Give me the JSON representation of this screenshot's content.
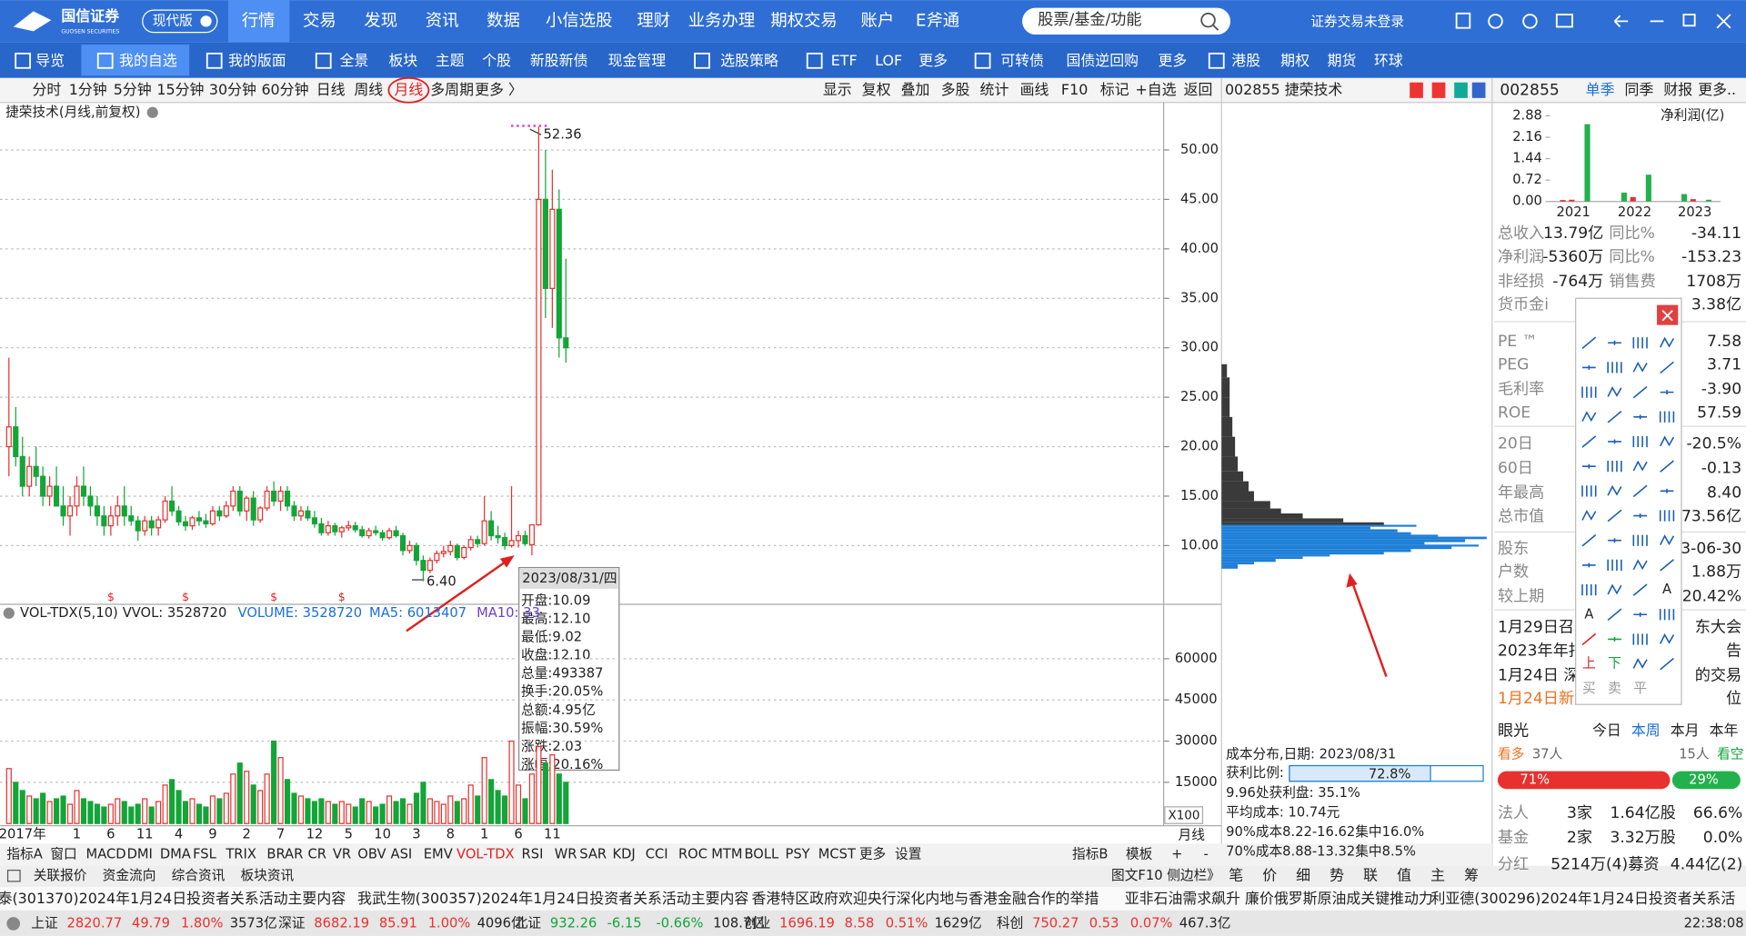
{
  "top_nav": {
    "logo": "国信证券",
    "logo_sub": "GUOSEN SECURITIES",
    "edition": "现代版",
    "menu": [
      "行情",
      "交易",
      "发现",
      "资讯",
      "数据",
      "小信选股",
      "理财",
      "业务办理",
      "期权交易",
      "账户",
      "E斧通"
    ],
    "search": "股票/基金/功能",
    "login": "证券交易未登录"
  },
  "toolbar": [
    "导览",
    "我的自选",
    "我的版面",
    "全景",
    "板块",
    "主题",
    "个股",
    "新股新债",
    "现金管理",
    "选股策略",
    "ETF",
    "LOF",
    "更多",
    "可转债",
    "国债逆回购",
    "更多",
    "港股",
    "期权",
    "期货",
    "环球"
  ],
  "period_tabs": [
    "分时",
    "1分钟",
    "5分钟",
    "15分钟",
    "30分钟",
    "60分钟",
    "日线",
    "周线",
    "月线",
    "多周期",
    "更多 〉"
  ],
  "chart_tools": [
    "显示",
    "复权",
    "叠加",
    "多股",
    "统计",
    "画线",
    "F10",
    "标记",
    "+自选",
    "返回"
  ],
  "chart_data": [
    {
      "type": "candlestick",
      "title": "捷荣技术(月线,前复权)",
      "categories": [
        null,
        null,
        "2017年",
        null,
        null,
        null,
        null,
        null,
        null,
        null,
        "1",
        null,
        null,
        null,
        null,
        "6",
        null,
        null,
        null,
        null,
        "11",
        null,
        null,
        null,
        null,
        "4",
        null,
        null,
        null,
        null,
        "9",
        null,
        null,
        null,
        null,
        "2",
        null,
        null,
        null,
        null,
        "7",
        null,
        null,
        null,
        null,
        "12",
        null,
        null,
        null,
        null,
        "5",
        null,
        null,
        null,
        null,
        "10",
        null,
        null,
        null,
        null,
        "3",
        null,
        null,
        null,
        null,
        "8",
        null,
        null,
        null,
        null,
        "1",
        null,
        null,
        null,
        null,
        "6",
        null,
        null,
        null,
        null,
        "11",
        null,
        null
      ],
      "ohlc": [
        [
          20,
          29,
          17,
          22
        ],
        [
          22,
          24,
          18,
          19
        ],
        [
          19,
          21,
          15,
          16
        ],
        [
          16,
          19,
          15,
          18
        ],
        [
          18,
          20,
          16,
          17
        ],
        [
          17,
          18,
          14,
          15
        ],
        [
          15,
          17,
          14,
          16
        ],
        [
          16,
          18,
          14,
          14
        ],
        [
          14,
          16,
          12,
          13
        ],
        [
          13,
          15,
          11,
          14
        ],
        [
          14,
          17,
          13,
          16
        ],
        [
          16,
          18,
          14,
          15
        ],
        [
          15,
          16,
          13,
          14
        ],
        [
          14,
          15,
          12,
          13
        ],
        [
          13,
          14,
          11,
          12
        ],
        [
          12,
          14,
          11,
          13
        ],
        [
          13,
          15,
          12,
          14
        ],
        [
          14,
          16,
          12,
          13
        ],
        [
          13,
          14,
          12,
          12.5
        ],
        [
          12.5,
          13,
          10.5,
          11.5
        ],
        [
          11.5,
          13,
          11,
          12.5
        ],
        [
          12.5,
          13,
          11,
          11.8
        ],
        [
          11.8,
          13,
          11,
          12.6
        ],
        [
          12.6,
          15,
          12.3,
          14.5
        ],
        [
          14.5,
          16,
          13,
          13.5
        ],
        [
          13.5,
          14,
          12,
          12.4
        ],
        [
          12.4,
          13,
          11.5,
          12
        ],
        [
          12,
          13,
          11.6,
          12.8
        ],
        [
          12.8,
          13.5,
          12,
          12.5
        ],
        [
          12.5,
          13.2,
          11.8,
          12.2
        ],
        [
          12.2,
          14,
          12,
          13.5
        ],
        [
          13.5,
          14,
          12.5,
          13
        ],
        [
          13,
          14.5,
          12.8,
          14
        ],
        [
          14,
          16,
          13.5,
          15.5
        ],
        [
          15.5,
          16,
          13,
          13.5
        ],
        [
          13.5,
          15,
          12.5,
          14.8
        ],
        [
          14.8,
          15.5,
          12,
          12.6
        ],
        [
          12.6,
          14,
          12.3,
          13.8
        ],
        [
          13.8,
          16,
          13.5,
          15.5
        ],
        [
          15.5,
          16.5,
          14,
          14.5
        ],
        [
          14.5,
          16,
          13.5,
          15.5
        ],
        [
          15.5,
          16,
          13.5,
          14
        ],
        [
          14,
          14.5,
          12.5,
          13
        ],
        [
          13,
          14,
          12.5,
          13.5
        ],
        [
          13.5,
          14,
          12.5,
          12.8
        ],
        [
          12.8,
          13.5,
          11.8,
          12.2
        ],
        [
          12.2,
          12.8,
          11,
          11.3
        ],
        [
          11.3,
          12.5,
          11,
          12
        ],
        [
          12,
          12.3,
          11,
          11.4
        ],
        [
          11.4,
          12,
          10.8,
          11.8
        ],
        [
          11.8,
          12.5,
          11.5,
          12
        ],
        [
          12,
          12.4,
          11.3,
          11.6
        ],
        [
          11.6,
          12,
          10.8,
          11
        ],
        [
          11,
          11.8,
          10.7,
          11.5
        ],
        [
          11.5,
          12,
          11,
          11.3
        ],
        [
          11.3,
          11.6,
          10.5,
          10.8
        ],
        [
          10.8,
          11.8,
          10.6,
          11.5
        ],
        [
          11.5,
          12,
          10.8,
          11
        ],
        [
          11,
          11.3,
          9,
          9.5
        ],
        [
          9.5,
          10.5,
          9.2,
          10
        ],
        [
          10,
          10.3,
          8,
          8.5
        ],
        [
          8.5,
          9,
          6.4,
          7.5
        ],
        [
          7.5,
          8.8,
          7.2,
          8.5
        ],
        [
          8.5,
          9.5,
          8.2,
          9.2
        ],
        [
          9.2,
          10,
          8.8,
          9.4
        ],
        [
          9.4,
          10.5,
          9,
          10
        ],
        [
          10,
          10.2,
          8.5,
          8.8
        ],
        [
          8.8,
          10,
          8.6,
          9.8
        ],
        [
          9.8,
          11,
          9.5,
          10.6
        ],
        [
          10.6,
          11,
          9.8,
          10.2
        ],
        [
          10.2,
          15,
          10,
          12.5
        ],
        [
          12.5,
          13.5,
          10.5,
          11
        ],
        [
          11,
          12,
          10.2,
          10.8
        ],
        [
          10.8,
          11.3,
          9.6,
          10
        ],
        [
          10,
          16,
          9.8,
          10.5
        ],
        [
          10.5,
          11.5,
          9.8,
          11
        ],
        [
          11,
          11.5,
          10,
          10.2
        ],
        [
          10.09,
          12.1,
          9.02,
          12.1
        ],
        [
          12.1,
          52.36,
          12,
          45
        ],
        [
          45,
          50,
          33,
          36
        ],
        [
          36,
          48,
          32,
          44
        ],
        [
          44,
          46,
          29,
          31
        ],
        [
          31,
          39,
          28.5,
          30
        ]
      ],
      "ylim": [
        4.4,
        53.9
      ],
      "yticks": [
        {
          "value": 10,
          "label": "10.00"
        },
        {
          "value": 15,
          "label": "15.00"
        },
        {
          "value": 20,
          "label": "20.00"
        },
        {
          "value": 25,
          "label": "25.00"
        },
        {
          "value": 30,
          "label": "30.00"
        },
        {
          "value": 35,
          "label": "35.00"
        },
        {
          "value": 40,
          "label": "40.00"
        },
        {
          "value": 45,
          "label": "45.00"
        },
        {
          "value": 50,
          "label": "50.00"
        }
      ],
      "grid": true,
      "up_color": "#e8312f",
      "down_color": "#13a538",
      "annotations": {
        "high": "52.36",
        "low": "6.40"
      },
      "markers": [
        "$",
        "$",
        "$",
        "$"
      ],
      "tooltip": {
        "date": "2023/08/31/四",
        "rows": [
          "开盘:10.09",
          "最高:12.10",
          "最低:9.02",
          "收盘:12.10",
          "总量:493387",
          "换手:20.05%",
          "总额:4.95亿",
          "振幅:30.59%",
          "涨跌:2.03",
          "涨幅:20.16%"
        ]
      },
      "period_label": "月线"
    },
    {
      "type": "bar",
      "title": "VOL-TDX(5,10)",
      "header": [
        "VVOL: 3528720",
        "VOLUME: 3528720",
        "MA5: 6013407",
        "MA10: 33"
      ],
      "values": [
        20000,
        15000,
        12000,
        10000,
        9000,
        11000,
        8000,
        9000,
        10000,
        7000,
        12000,
        9000,
        8000,
        7000,
        6000,
        7000,
        9000,
        8000,
        6000,
        7000,
        9000,
        6000,
        8000,
        14000,
        16000,
        12000,
        8000,
        9000,
        7000,
        6000,
        10000,
        9000,
        11000,
        18000,
        22000,
        19000,
        14000,
        12000,
        18000,
        30000,
        24000,
        16000,
        11000,
        10000,
        9000,
        8000,
        9000,
        8000,
        7000,
        8000,
        7000,
        6000,
        9000,
        8000,
        6000,
        7000,
        10000,
        8000,
        9000,
        7000,
        11000,
        15000,
        9000,
        8000,
        7000,
        10000,
        8000,
        9000,
        14000,
        10000,
        24000,
        16000,
        12000,
        10000,
        30000,
        14000,
        9000,
        18000,
        28000,
        22000,
        25000,
        18000,
        15000
      ],
      "ylim": [
        0,
        79000
      ],
      "yticks": [
        15000,
        30000,
        45000,
        60000
      ],
      "grid": true,
      "unit_label": "X100"
    },
    {
      "type": "chip_distribution",
      "title": "002855 捷荣技术",
      "prices": [
        28,
        26,
        24,
        22,
        20,
        18,
        17,
        16,
        15,
        14,
        13.5,
        13,
        12.5,
        12.2,
        12,
        11.8,
        11.5,
        11.2,
        11,
        10.8,
        10.5,
        10.2,
        10,
        9.8,
        9.5,
        9.2,
        9,
        8.8,
        8.5,
        8.2,
        8
      ],
      "amounts": [
        2,
        3,
        3,
        4,
        5,
        6,
        8,
        10,
        12,
        18,
        22,
        30,
        45,
        60,
        72,
        55,
        65,
        70,
        80,
        98,
        90,
        75,
        95,
        85,
        70,
        60,
        40,
        30,
        20,
        12,
        6
      ],
      "colors": [
        "#3a3a3a",
        "#3a3a3a",
        "#3a3a3a",
        "#3a3a3a",
        "#3a3a3a",
        "#3a3a3a",
        "#3a3a3a",
        "#3a3a3a",
        "#3a3a3a",
        "#3a3a3a",
        "#3a3a3a",
        "#3a3a3a",
        "#3a3a3a",
        "#3a3a3a",
        "#1e7fd8",
        "#1e7fd8",
        "#1e7fd8",
        "#1e7fd8",
        "#1e7fd8",
        "#1e7fd8",
        "#1e7fd8",
        "#1e7fd8",
        "#1e7fd8",
        "#1e7fd8",
        "#1e7fd8",
        "#1e7fd8",
        "#1e7fd8",
        "#1e7fd8",
        "#1e7fd8",
        "#1e7fd8",
        "#1e7fd8"
      ],
      "date_label": "成本分布,日期: 2023/08/31",
      "profit_label": "获利比例:",
      "profit_ratio": {
        "value": 72.8,
        "label": "72.8%"
      },
      "lines": [
        "9.96处获利盘: 35.1%",
        "平均成本: 10.74元",
        "90%成本8.22-16.62集中16.0%",
        "70%成本8.88-13.32集中8.5%"
      ]
    },
    {
      "type": "grouped_bar",
      "title": "净利润(亿)",
      "categories": [
        "2021",
        "2022",
        "2023"
      ],
      "values": [
        [
          0.05,
          0.06,
          2.6
        ],
        [
          0.3,
          0.15,
          0.9
        ],
        [
          0.25,
          0.08,
          0.06
        ]
      ],
      "colors": [
        [
          "#e8312f",
          "#e8312f",
          "#22b14c"
        ],
        [
          "#22b14c",
          "#e8312f",
          "#22b14c"
        ],
        [
          "#22b14c",
          "#e8312f",
          "#22b14c"
        ]
      ],
      "ylim": [
        0,
        2.88
      ],
      "yticks": [
        {
          "value": 0,
          "label": "0.00"
        },
        0.72,
        1.44,
        2.16,
        2.88
      ]
    }
  ],
  "right_panel": {
    "code": "002855",
    "tabs": [
      "单季",
      "同季",
      "财报",
      "更多.."
    ],
    "rows": [
      {
        "label": "总收入",
        "value": "13.79亿",
        "label2": "同比%",
        "value2": "-34.11"
      },
      {
        "label": "净利润",
        "value": "-5360万",
        "label2": "同比%",
        "value2": "-153.23"
      },
      {
        "label": "非经损",
        "value": "-764万",
        "label2": "销售费",
        "value2": "1708万"
      },
      {
        "label": "货币金i",
        "value": "1",
        "value2": "3.38亿"
      },
      {
        "label": "PE ™",
        "value2": "7.58"
      },
      {
        "label": "PEG",
        "value2": "3.71"
      },
      {
        "label": "毛利率",
        "value2": "-3.90"
      },
      {
        "label": "ROE",
        "value": "-5",
        "value2": "57.59"
      },
      {
        "label": "20日",
        "value": "-",
        "value2": "-20.5%"
      },
      {
        "label": "60日",
        "value2": "-0.13"
      },
      {
        "label": "年最高",
        "value2": "8.40"
      },
      {
        "label": "总市值",
        "value": "73",
        "value2": "73.56亿"
      },
      {
        "label": "股东",
        "value2": "23-06-30"
      },
      {
        "label": "户数",
        "value2": "1.88万"
      },
      {
        "label": "较上期",
        "value2": "-20.42%"
      },
      {
        "label": "1月29日召",
        "value2": "东大会"
      },
      {
        "label": "2023年年扣",
        "value2": "告"
      },
      {
        "label": "1月24日 深",
        "value2": "的交易"
      },
      {
        "label": "1月24日新",
        "value2": "位"
      }
    ],
    "vision": {
      "title": "眼光",
      "tabs": [
        "今日",
        "本周",
        "本月",
        "本年"
      ],
      "bull": "看多",
      "bull_count": "37人",
      "bear_count": "15人",
      "bear": "看空",
      "bull_pct": {
        "value": 71,
        "label": "71%"
      },
      "bear_pct": {
        "value": 29,
        "label": "29%"
      }
    },
    "holders": [
      [
        "法人",
        "3家",
        "1.64亿股",
        "66.6%"
      ],
      [
        "基金",
        "2家",
        "3.32万股",
        "0.0%"
      ]
    ],
    "dividend": [
      "分红",
      "5214万(4)募资",
      "4.44亿(2)"
    ],
    "bottom_tabs": [
      "笔",
      "价",
      "细",
      "势",
      "联",
      "值",
      "主",
      "筹"
    ]
  },
  "draw_tools": {
    "text_icons": [
      "A",
      "A",
      "上",
      "下",
      "买",
      "卖",
      "平"
    ]
  },
  "indicator_tabs": [
    "指标A",
    "窗口",
    "MACD",
    "DMI",
    "DMA",
    "FSL",
    "TRIX",
    "BRAR",
    "CR",
    "VR",
    "OBV",
    "ASI",
    "EMV",
    "VOL-TDX",
    "RSI",
    "WR",
    "SAR",
    "KDJ",
    "CCI",
    "ROC",
    "MTM",
    "BOLL",
    "PSY",
    "MCST",
    "更多",
    "设置"
  ],
  "indicator_tabs_right": [
    "指标B",
    "模板",
    "+",
    "-"
  ],
  "bottom_bar": {
    "tabs": [
      "关联报价",
      "资金流向",
      "综合资讯",
      "板块资讯"
    ],
    "sidebar": "图文F10 侧边栏》"
  },
  "news": [
    "泰(301370)2024年1月24日投资者关系活动主要内容",
    "我武生物(300357)2024年1月24日投资者关系活动主要内容",
    "香港特区政府欢迎央行深化内地与香港金融合作的举措",
    "亚非石油需求飙升 廉价俄罗斯原油成关键推动力",
    "利亚德(300296)2024年1月24日投资者关系活"
  ],
  "status": {
    "indices": [
      [
        "上证",
        "2820.77",
        "49.79",
        "1.80%",
        "3573亿"
      ],
      [
        "深证",
        "8682.19",
        "85.91",
        "1.00%",
        "4096亿"
      ],
      [
        "北证",
        "932.26",
        "-6.15",
        "-0.66%",
        "108.7亿"
      ],
      [
        "创业",
        "1696.19",
        "8.58",
        "0.51%",
        "1629亿"
      ],
      [
        "科创",
        "750.27",
        "0.53",
        "0.07%",
        "467.3亿"
      ]
    ],
    "time": "22:38:08"
  }
}
